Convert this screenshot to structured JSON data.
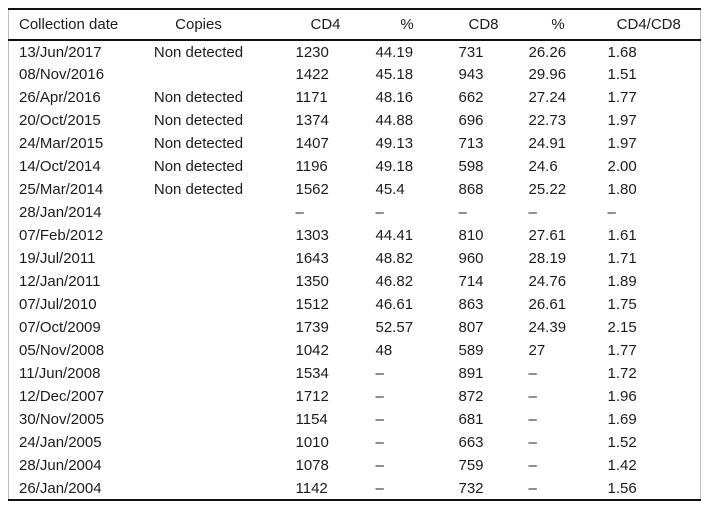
{
  "table": {
    "column_keys": [
      "collection-date",
      "copies",
      "cd4",
      "cd4-percent",
      "cd8",
      "cd8-percent",
      "cd4-cd8-ratio"
    ],
    "columns": [
      "Collection date",
      "Copies",
      "CD4",
      "%",
      "CD8",
      "%",
      "CD4/CD8"
    ],
    "rows": [
      [
        "13/Jun/2017",
        "Non detected",
        "1230",
        "44.19",
        "731",
        "26.26",
        "1.68"
      ],
      [
        "08/Nov/2016",
        "",
        "1422",
        "45.18",
        "943",
        "29.96",
        "1.51"
      ],
      [
        "26/Apr/2016",
        "Non detected",
        "1171",
        "48.16",
        "662",
        "27.24",
        "1.77"
      ],
      [
        "20/Oct/2015",
        "Non detected",
        "1374",
        "44.88",
        "696",
        "22.73",
        "1.97"
      ],
      [
        "24/Mar/2015",
        "Non detected",
        "1407",
        "49.13",
        "713",
        "24.91",
        "1.97"
      ],
      [
        "14/Oct/2014",
        "Non detected",
        "1196",
        "49.18",
        "598",
        "24.6",
        "2.00"
      ],
      [
        "25/Mar/2014",
        "Non detected",
        "1562",
        "45.4",
        "868",
        "25.22",
        "1.80"
      ],
      [
        "28/Jan/2014",
        "",
        "–",
        "–",
        "–",
        "–",
        "–"
      ],
      [
        "07/Feb/2012",
        "",
        "1303",
        "44.41",
        "810",
        "27.61",
        "1.61"
      ],
      [
        "19/Jul/2011",
        "",
        "1643",
        "48.82",
        "960",
        "28.19",
        "1.71"
      ],
      [
        "12/Jan/2011",
        "",
        "1350",
        "46.82",
        "714",
        "24.76",
        "1.89"
      ],
      [
        "07/Jul/2010",
        "",
        "1512",
        "46.61",
        "863",
        "26.61",
        "1.75"
      ],
      [
        "07/Oct/2009",
        "",
        "1739",
        "52.57",
        "807",
        "24.39",
        "2.15"
      ],
      [
        "05/Nov/2008",
        "",
        "1042",
        "48",
        "589",
        "27",
        "1.77"
      ],
      [
        "11/Jun/2008",
        "",
        "1534",
        "–",
        "891",
        "–",
        "1.72"
      ],
      [
        "12/Dec/2007",
        "",
        "1712",
        "–",
        "872",
        "–",
        "1.96"
      ],
      [
        "30/Nov/2005",
        "",
        "1154",
        "–",
        "681",
        "–",
        "1.69"
      ],
      [
        "24/Jan/2005",
        "",
        "1010",
        "–",
        "663",
        "–",
        "1.52"
      ],
      [
        "28/Jun/2004",
        "",
        "1078",
        "–",
        "759",
        "–",
        "1.42"
      ],
      [
        "26/Jan/2004",
        "",
        "1142",
        "–",
        "732",
        "–",
        "1.56"
      ]
    ]
  },
  "colors": {
    "text": "#1c1c1c",
    "rule": "#111111",
    "side_border": "#bdbdbd",
    "background": "#ffffff"
  }
}
